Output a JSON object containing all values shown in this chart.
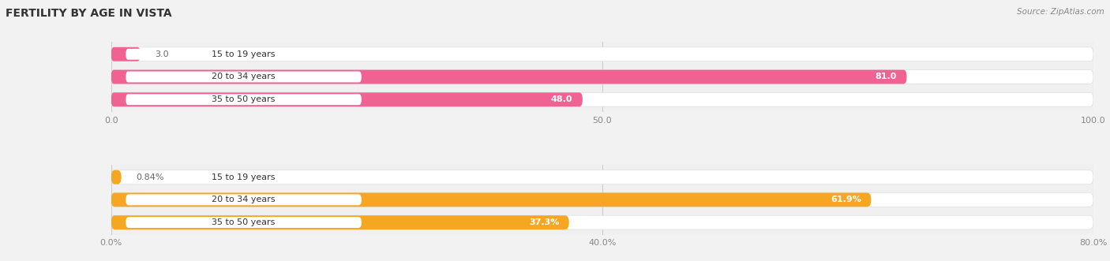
{
  "title": "FERTILITY BY AGE IN VISTA",
  "source": "Source: ZipAtlas.com",
  "top_section": {
    "categories": [
      "15 to 19 years",
      "20 to 34 years",
      "35 to 50 years"
    ],
    "values": [
      3.0,
      81.0,
      48.0
    ],
    "value_labels": [
      "3.0",
      "81.0",
      "48.0"
    ],
    "x_max": 100.0,
    "x_ticks": [
      0.0,
      50.0,
      100.0
    ],
    "x_tick_labels": [
      "0.0",
      "50.0",
      "100.0"
    ],
    "bar_color": "#f06292",
    "bar_bg": "#ffffff",
    "outer_bg": "#f0f0f0",
    "label_inside_color": "#ffffff",
    "label_outside_color": "#666666",
    "inside_threshold_pct": 0.45
  },
  "bottom_section": {
    "categories": [
      "15 to 19 years",
      "20 to 34 years",
      "35 to 50 years"
    ],
    "values": [
      0.84,
      61.9,
      37.3
    ],
    "value_labels": [
      "0.84%",
      "61.9%",
      "37.3%"
    ],
    "x_max": 80.0,
    "x_ticks": [
      0.0,
      40.0,
      80.0
    ],
    "x_tick_labels": [
      "0.0%",
      "40.0%",
      "80.0%"
    ],
    "bar_color": "#f5a623",
    "bar_bg": "#ffffff",
    "outer_bg": "#f0f0f0",
    "label_inside_color": "#ffffff",
    "label_outside_color": "#666666",
    "inside_threshold_pct": 0.45
  },
  "figsize": [
    14.06,
    3.31
  ],
  "dpi": 100,
  "bg_color": "#f2f2f2",
  "bar_height": 0.62,
  "title_fontsize": 10,
  "label_fontsize": 8,
  "tick_fontsize": 8,
  "source_fontsize": 7.5,
  "category_fontsize": 8
}
